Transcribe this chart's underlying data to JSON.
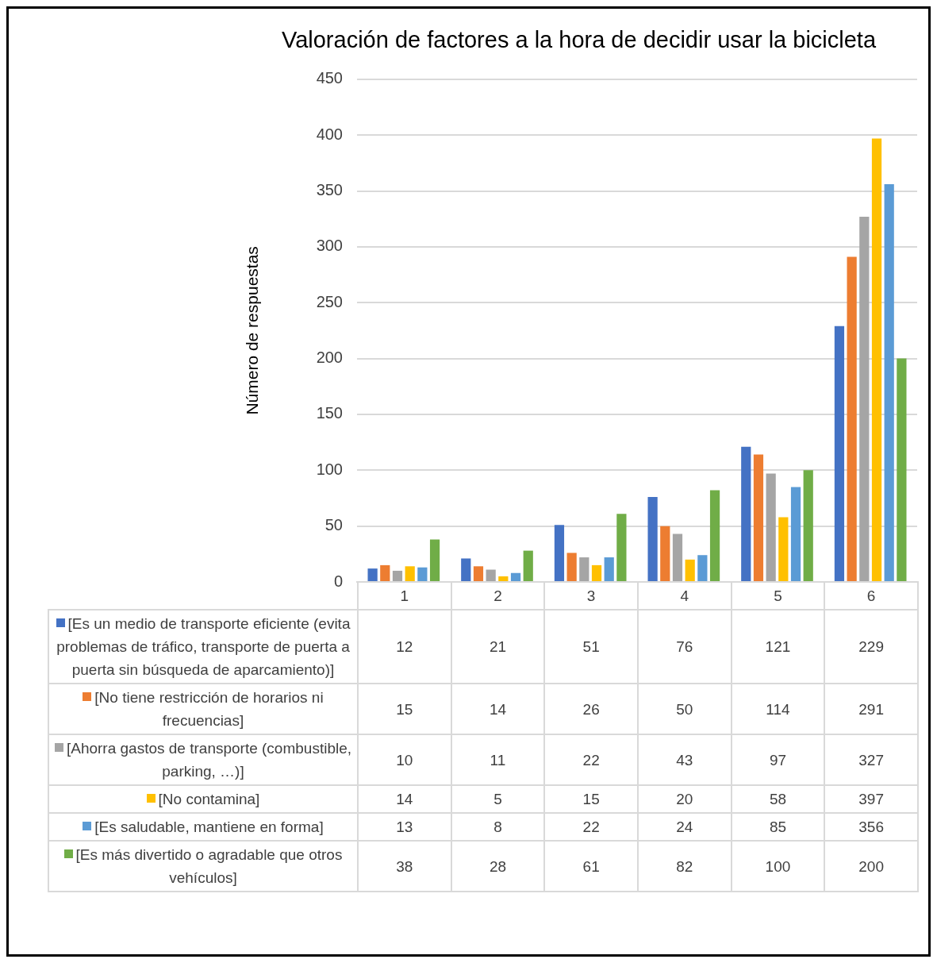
{
  "chart_data": {
    "type": "bar",
    "title": "Valoración de factores a la hora de decidir usar la bicicleta",
    "ylabel": "Número de respuestas",
    "categories": [
      "1",
      "2",
      "3",
      "4",
      "5",
      "6"
    ],
    "series": [
      {
        "name": "[Es un medio de transporte eficiente (evita problemas de tráfico, transporte de puerta a puerta sin búsqueda de aparcamiento)]",
        "color": "#4472c4",
        "values": [
          12,
          21,
          51,
          76,
          121,
          229
        ]
      },
      {
        "name": "[No tiene restricción de horarios ni frecuencias]",
        "color": "#ed7d31",
        "values": [
          15,
          14,
          26,
          50,
          114,
          291
        ]
      },
      {
        "name": "[Ahorra gastos de transporte (combustible, parking, …)]",
        "color": "#a5a5a5",
        "values": [
          10,
          11,
          22,
          43,
          97,
          327
        ]
      },
      {
        "name": "[No contamina]",
        "color": "#ffc000",
        "values": [
          14,
          5,
          15,
          20,
          58,
          397
        ]
      },
      {
        "name": "[Es saludable, mantiene en forma]",
        "color": "#5b9bd5",
        "values": [
          13,
          8,
          22,
          24,
          85,
          356
        ]
      },
      {
        "name": "[Es más divertido o agradable que otros vehículos]",
        "color": "#70ad47",
        "values": [
          38,
          28,
          61,
          82,
          100,
          200
        ]
      }
    ],
    "ylim": [
      0,
      450
    ],
    "yticks": [
      0,
      50,
      100,
      150,
      200,
      250,
      300,
      350,
      400,
      450
    ],
    "grid": "y",
    "legend": "bottom",
    "data_labels": true
  }
}
